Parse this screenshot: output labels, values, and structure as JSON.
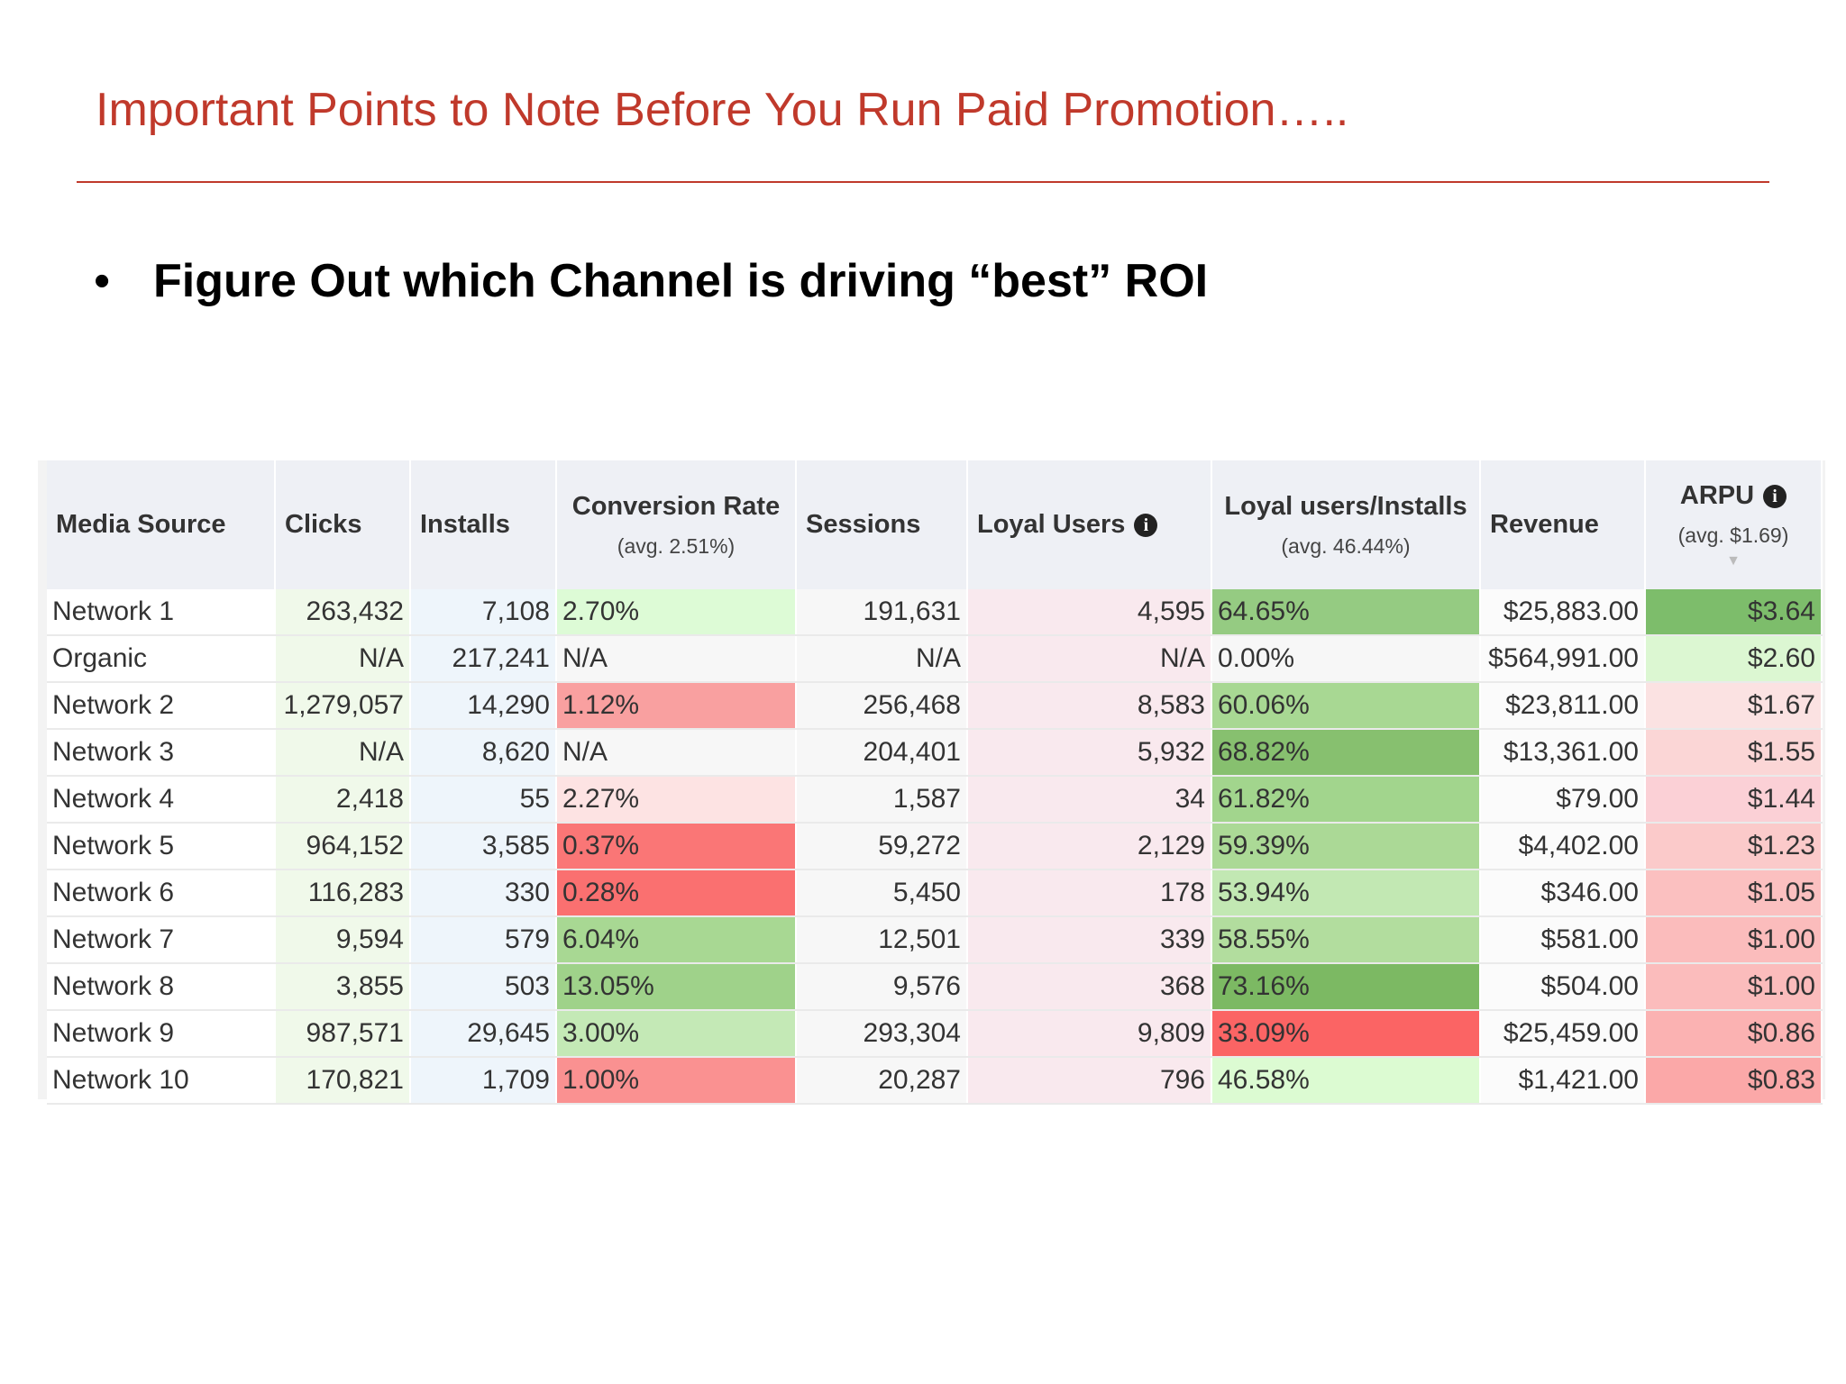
{
  "slide": {
    "title": "Important Points to Note Before You Run Paid Promotion…..",
    "bullet_marker": "•",
    "bullet": "Figure Out which Channel is driving “best” ROI"
  },
  "table": {
    "headers": {
      "media_source": "Media Source",
      "clicks": "Clicks",
      "installs": "Installs",
      "conversion_rate": "Conversion Rate",
      "conversion_rate_avg": "(avg. 2.51%)",
      "sessions": "Sessions",
      "loyal_users": "Loyal Users",
      "loyal_per_install": "Loyal users/Installs",
      "loyal_per_install_avg": "(avg. 46.44%)",
      "revenue": "Revenue",
      "arpu": "ARPU",
      "arpu_avg": "(avg. $1.69)"
    },
    "icons": {
      "info": "info-icon",
      "sort": "sort-desc-icon"
    },
    "rows": [
      {
        "source": "Network 1",
        "clicks": "263,432",
        "installs": "7,108",
        "conv": "2.70%",
        "conv_color": "#ddfbd6",
        "sessions": "191,631",
        "loyal": "4,595",
        "lpi": "64.65%",
        "lpi_color": "#95cb82",
        "revenue": "$25,883.00",
        "arpu": "$3.64",
        "arpu_color": "#7dbd6b"
      },
      {
        "source": "Organic",
        "clicks": "N/A",
        "installs": "217,241",
        "conv": "N/A",
        "conv_color": "#f7f7f7",
        "sessions": "N/A",
        "loyal": "N/A",
        "lpi": "0.00%",
        "lpi_color": "#f7f7f7",
        "revenue": "$564,991.00",
        "arpu": "$2.60",
        "arpu_color": "#dcf7d2"
      },
      {
        "source": "Network 2",
        "clicks": "1,279,057",
        "installs": "14,290",
        "conv": "1.12%",
        "conv_color": "#f9a0a0",
        "sessions": "256,468",
        "loyal": "8,583",
        "lpi": "60.06%",
        "lpi_color": "#a8d893",
        "revenue": "$23,811.00",
        "arpu": "$1.67",
        "arpu_color": "#fbe2e2"
      },
      {
        "source": "Network 3",
        "clicks": "N/A",
        "installs": "8,620",
        "conv": "N/A",
        "conv_color": "#f7f7f7",
        "sessions": "204,401",
        "loyal": "5,932",
        "lpi": "68.82%",
        "lpi_color": "#87c06f",
        "revenue": "$13,361.00",
        "arpu": "$1.55",
        "arpu_color": "#fbd6d6"
      },
      {
        "source": "Network 4",
        "clicks": "2,418",
        "installs": "55",
        "conv": "2.27%",
        "conv_color": "#fde3e3",
        "sessions": "1,587",
        "loyal": "34",
        "lpi": "61.82%",
        "lpi_color": "#a2d58d",
        "revenue": "$79.00",
        "arpu": "$1.44",
        "arpu_color": "#fbd0d6"
      },
      {
        "source": "Network 5",
        "clicks": "964,152",
        "installs": "3,585",
        "conv": "0.37%",
        "conv_color": "#fa7676",
        "sessions": "59,272",
        "loyal": "2,129",
        "lpi": "59.39%",
        "lpi_color": "#abd996",
        "revenue": "$4,402.00",
        "arpu": "$1.23",
        "arpu_color": "#fbcaca"
      },
      {
        "source": "Network 6",
        "clicks": "116,283",
        "installs": "330",
        "conv": "0.28%",
        "conv_color": "#fa7070",
        "sessions": "5,450",
        "loyal": "178",
        "lpi": "53.94%",
        "lpi_color": "#c2e8b3",
        "revenue": "$346.00",
        "arpu": "$1.05",
        "arpu_color": "#fbc0c0"
      },
      {
        "source": "Network 7",
        "clicks": "9,594",
        "installs": "579",
        "conv": "6.04%",
        "conv_color": "#a8d893",
        "sessions": "12,501",
        "loyal": "339",
        "lpi": "58.55%",
        "lpi_color": "#b2dd9e",
        "revenue": "$581.00",
        "arpu": "$1.00",
        "arpu_color": "#fbbcbc"
      },
      {
        "source": "Network 8",
        "clicks": "3,855",
        "installs": "503",
        "conv": "13.05%",
        "conv_color": "#9fd28a",
        "sessions": "9,576",
        "loyal": "368",
        "lpi": "73.16%",
        "lpi_color": "#7cb963",
        "revenue": "$504.00",
        "arpu": "$1.00",
        "arpu_color": "#fbbcbc"
      },
      {
        "source": "Network 9",
        "clicks": "987,571",
        "installs": "29,645",
        "conv": "3.00%",
        "conv_color": "#c4e9b6",
        "sessions": "293,304",
        "loyal": "9,809",
        "lpi": "33.09%",
        "lpi_color": "#fb6464",
        "revenue": "$25,459.00",
        "arpu": "$0.86",
        "arpu_color": "#fbb2b2"
      },
      {
        "source": "Network 10",
        "clicks": "170,821",
        "installs": "1,709",
        "conv": "1.00%",
        "conv_color": "#fa9191",
        "sessions": "20,287",
        "loyal": "796",
        "lpi": "46.58%",
        "lpi_color": "#dcfbd2",
        "revenue": "$1,421.00",
        "arpu": "$0.83",
        "arpu_color": "#fba8a8"
      }
    ]
  }
}
